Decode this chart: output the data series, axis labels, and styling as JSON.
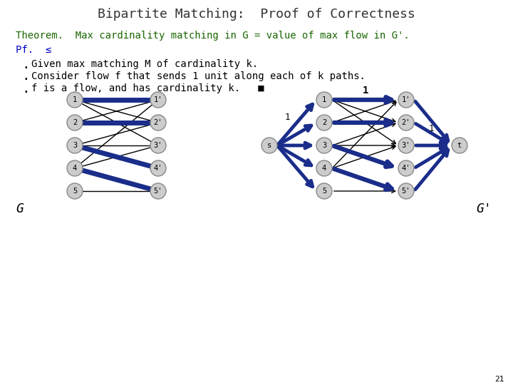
{
  "title": "Bipartite Matching:  Proof of Correctness",
  "title_color": "#333333",
  "title_fontsize": 13,
  "bg_color": "#ffffff",
  "theorem_text_1": "Theorem.  Max cardinality matching in G = value of max flow in G'.",
  "pf_text": "Pf.  ≤",
  "bullet1": "Given max matching M of cardinality k.",
  "bullet2": "Consider flow f that sends 1 unit along each of k paths.",
  "bullet3": "f is a flow, and has cardinality k.   ■",
  "theorem_color": "#1a6600",
  "pf_color": "#0000cc",
  "bullet_color": "#000000",
  "body_fontsize": 10,
  "slide_number": "21",
  "G_label": "G",
  "Gprime_label": "G'",
  "node_color": "#cccccc",
  "node_edge_color": "#888888",
  "matching_color": "#1a2d8a",
  "nonmatching_color": "#000000",
  "G_all_edges": [
    [
      1,
      "2'"
    ],
    [
      1,
      "3'"
    ],
    [
      2,
      "1'"
    ],
    [
      2,
      "2'"
    ],
    [
      3,
      "2'"
    ],
    [
      3,
      "3'"
    ],
    [
      3,
      "4'"
    ],
    [
      4,
      "1'"
    ],
    [
      4,
      "3'"
    ],
    [
      5,
      "5'"
    ]
  ],
  "G_matching_edges": [
    [
      1,
      "1'"
    ],
    [
      2,
      "2'"
    ],
    [
      3,
      "4'"
    ],
    [
      4,
      "5'"
    ]
  ],
  "Gp_all_edges": [
    [
      1,
      "2'"
    ],
    [
      1,
      "3'"
    ],
    [
      2,
      "1'"
    ],
    [
      2,
      "2'"
    ],
    [
      3,
      "2'"
    ],
    [
      3,
      "3'"
    ],
    [
      3,
      "4'"
    ],
    [
      4,
      "1'"
    ],
    [
      4,
      "3'"
    ],
    [
      5,
      "5'"
    ]
  ],
  "Gp_matching_edges": [
    [
      1,
      "1'"
    ],
    [
      2,
      "2'"
    ],
    [
      3,
      "4'"
    ],
    [
      4,
      "5'"
    ]
  ],
  "flow_1_1p": "1",
  "flow_s_1": "1",
  "flow_2p_t": "1"
}
